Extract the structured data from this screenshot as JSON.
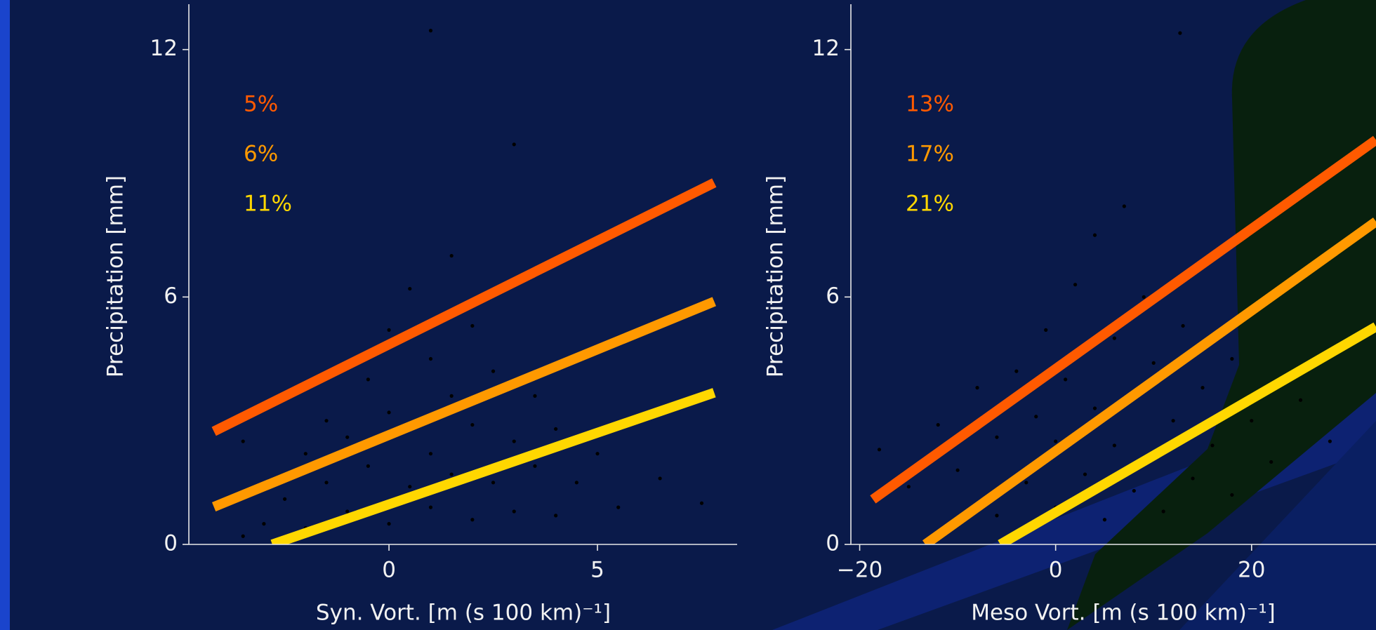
{
  "chart_data": [
    {
      "type": "scatter",
      "xlabel": "Syn. Vort. [m (s 100 km)⁻¹]",
      "ylabel": "Precipitation [mm]",
      "xlim": [
        -4.8,
        8.35
      ],
      "ylim": [
        0,
        13.1
      ],
      "xticks": [
        0,
        5
      ],
      "yticks": [
        0,
        6,
        12
      ],
      "legend": "upper left",
      "series": [
        {
          "color": "#000000",
          "x": [
            -3.5,
            -3,
            -2.5,
            -2,
            -2,
            -1.5,
            -1.5,
            -1,
            -1,
            -0.5,
            -0.5,
            0,
            0,
            0,
            0.5,
            0.5,
            0.5,
            1,
            1,
            1,
            1,
            1.5,
            1.5,
            1.5,
            2,
            2,
            2,
            2.5,
            2.5,
            3,
            3,
            3,
            3.5,
            3.5,
            4,
            4,
            4.5,
            5,
            5.5,
            6.5,
            7.5,
            -3.5
          ],
          "values": [
            0.2,
            0.5,
            1.1,
            0.4,
            2.2,
            1.5,
            3,
            0.8,
            2.6,
            1.9,
            4,
            0.5,
            3.2,
            5.2,
            1.4,
            2.8,
            6.2,
            0.9,
            2.2,
            4.5,
            12.46,
            1.7,
            3.6,
            7,
            0.6,
            2.9,
            5.3,
            1.5,
            4.2,
            0.8,
            2.5,
            9.7,
            1.9,
            3.6,
            0.7,
            2.8,
            1.5,
            2.2,
            0.9,
            1.6,
            1.0,
            2.5
          ]
        },
        {
          "name": "5%",
          "color": "#ff5a00",
          "x": [
            -4.2,
            7.8
          ],
          "values": [
            2.74,
            8.77
          ]
        },
        {
          "name": "6%",
          "color": "#ff9900",
          "x": [
            -4.2,
            7.8
          ],
          "values": [
            0.91,
            5.89
          ]
        },
        {
          "name": "11%",
          "color": "#ffd700",
          "x": [
            -2.8,
            7.8
          ],
          "values": [
            0,
            3.68
          ]
        }
      ]
    },
    {
      "type": "scatter",
      "xlabel": "Meso Vort. [m (s 100 km)⁻¹]",
      "ylabel": "Precipitation [mm]",
      "xlim": [
        -20.9,
        32.7
      ],
      "ylim": [
        0,
        13.1
      ],
      "xticks": [
        {
          "value": -20,
          "label": "−20"
        },
        0,
        20
      ],
      "yticks": [
        0,
        6,
        12
      ],
      "legend": "upper left",
      "series": [
        {
          "color": "#000000",
          "x": [
            -18,
            -15,
            -12,
            -10,
            -8,
            -6,
            -6,
            -4,
            -3,
            -2,
            -1,
            0,
            0,
            1,
            2,
            3,
            4,
            4,
            5,
            6,
            6,
            7,
            8,
            8,
            9,
            10,
            10,
            11,
            12,
            12.7,
            13,
            14,
            15,
            16,
            18,
            18,
            20,
            22,
            25,
            28
          ],
          "values": [
            2.3,
            1.4,
            2.9,
            1.8,
            3.8,
            0.7,
            2.6,
            4.2,
            1.5,
            3.1,
            5.2,
            0.9,
            2.5,
            4,
            6.3,
            1.7,
            3.3,
            7.5,
            0.6,
            2.4,
            5,
            8.2,
            1.3,
            3.7,
            6,
            2.1,
            4.4,
            0.8,
            3,
            12.4,
            5.3,
            1.6,
            3.8,
            2.4,
            4.5,
            1.2,
            3,
            2,
            3.5,
            2.5
          ]
        },
        {
          "name": "13%",
          "color": "#ff5a00",
          "x": [
            -18.65,
            32.7
          ],
          "values": [
            1.09,
            9.81
          ]
        },
        {
          "name": "17%",
          "color": "#ff9900",
          "x": [
            -13.3,
            32.7
          ],
          "values": [
            0,
            7.83
          ]
        },
        {
          "name": "21%",
          "color": "#ffd700",
          "x": [
            -5.65,
            32.7
          ],
          "values": [
            0,
            5.28
          ]
        }
      ]
    }
  ]
}
